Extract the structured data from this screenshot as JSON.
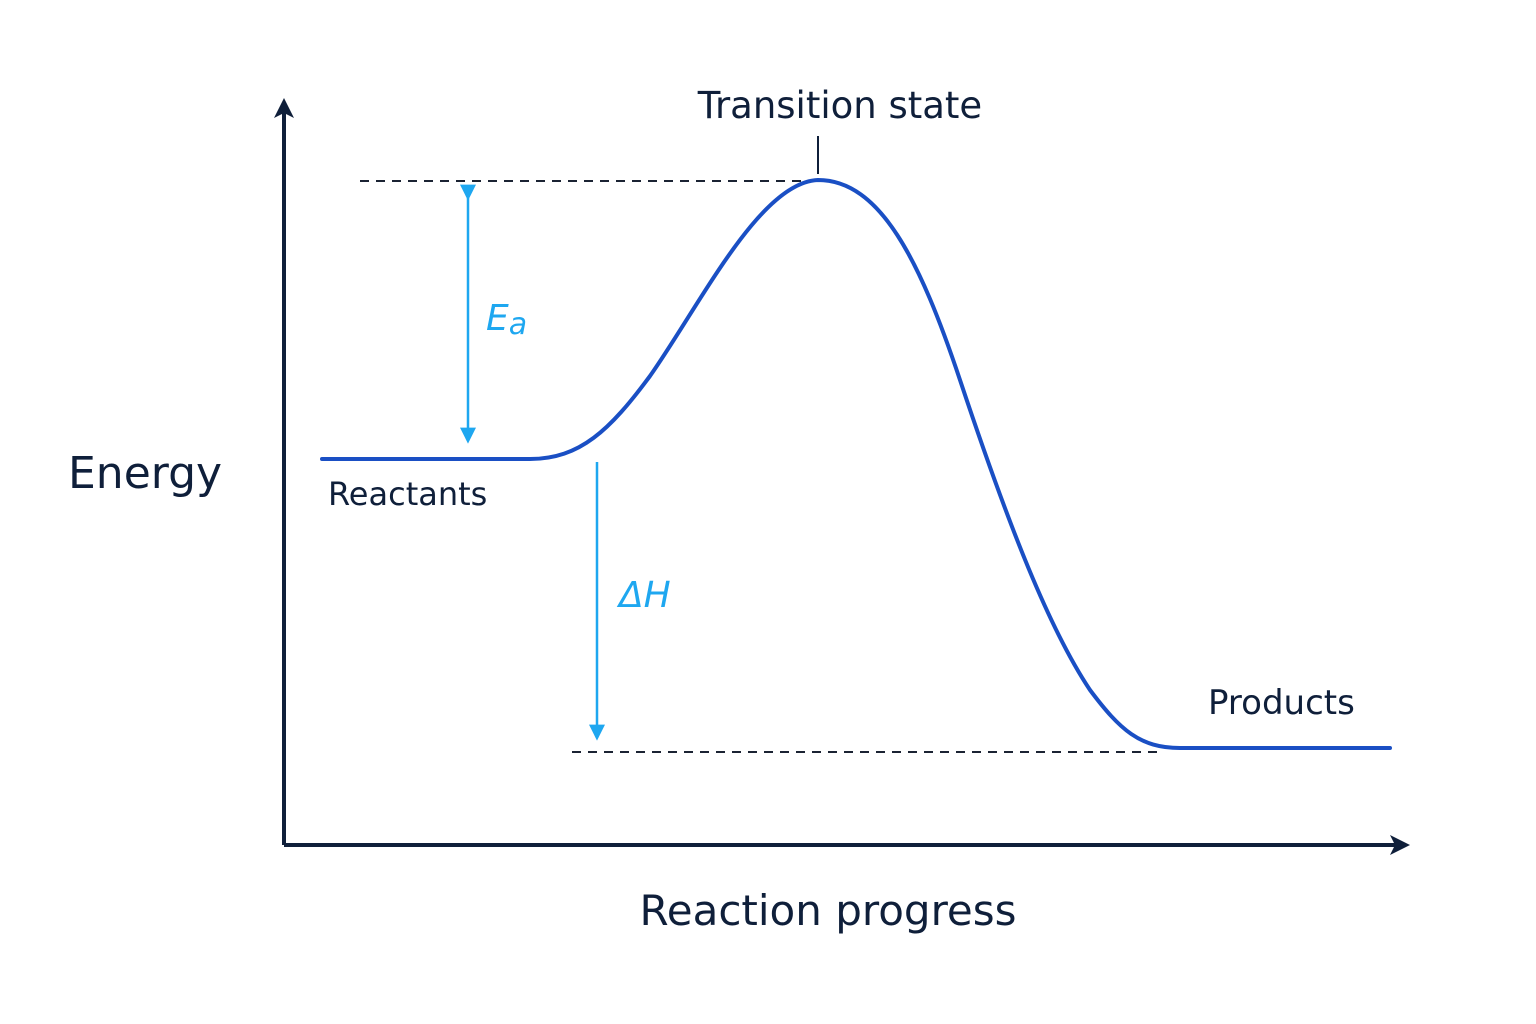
{
  "labels": {
    "y_axis": "Energy",
    "x_axis": "Reaction progress",
    "transition_state": "Transition state",
    "reactants": "Reactants",
    "products": "Products",
    "activation_energy_symbol": "E",
    "activation_energy_subscript": "a",
    "enthalpy_change": "ΔH"
  },
  "energy_levels": {
    "reactants": 0.5,
    "transition_state": 1.0,
    "products": 0.0
  },
  "colors": {
    "axes": "#0f1f3a",
    "curve": "#1a4fc4",
    "arrows": "#1ea7f0",
    "guide_lines": "#1b2333",
    "text": "#0f1f3a"
  }
}
